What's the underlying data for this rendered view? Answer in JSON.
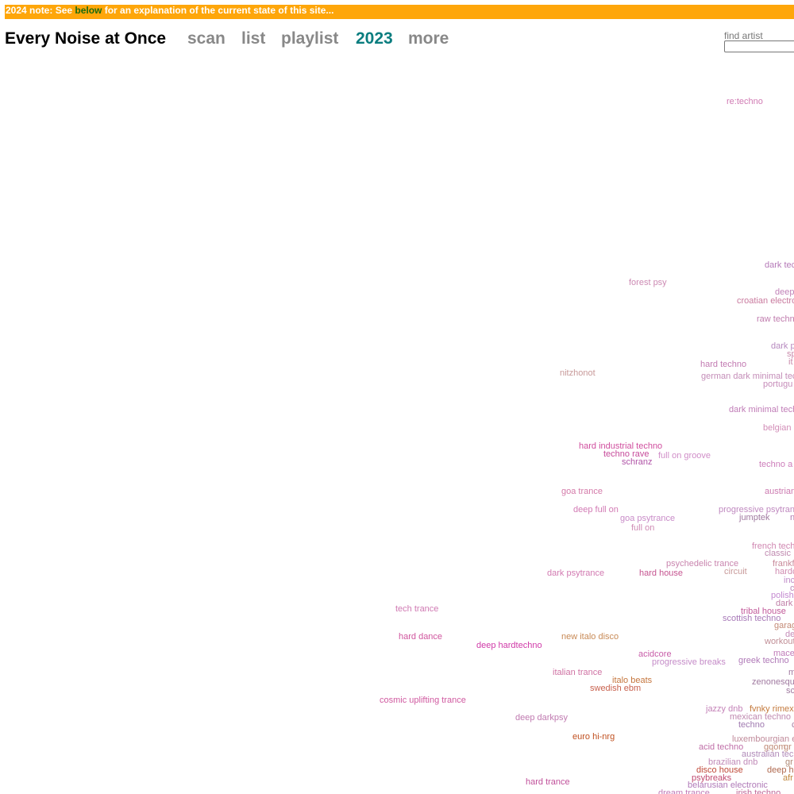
{
  "banner": {
    "prefix": "2024 note: See ",
    "link": "below",
    "suffix": " for an explanation of the current state of this site..."
  },
  "header": {
    "title": "Every Noise at Once",
    "nav": [
      "scan",
      "list",
      "playlist",
      "2023",
      "more"
    ],
    "active_nav": "2023",
    "find_label": "find artist",
    "find_value": ""
  },
  "genres": [
    "re:techno",
    "dark tec",
    "forest psy",
    "deep",
    "croatian electro",
    "raw techn",
    "dark p",
    "sp",
    "it",
    "hard techno",
    "nitzhonot",
    "german dark minimal tec",
    "portugu",
    "dark minimal tech",
    "belgian",
    "hard industrial techno",
    "techno rave",
    "full on groove",
    "schranz",
    "techno a",
    "goa trance",
    "austrian",
    "deep full on",
    "progressive psytran",
    "goa psytrance",
    "jumptek",
    "n",
    "full on",
    "french tech",
    "classic",
    "psychedelic trance",
    "frankf",
    "dark psytrance",
    "hard house",
    "circuit",
    "hardc",
    "inc",
    "c",
    "polish",
    "dark",
    "tech trance",
    "tribal house",
    "scottish techno",
    "garag",
    "hard dance",
    "new italo disco",
    "de",
    "workout",
    "deep hardtechno",
    "acidcore",
    "mace",
    "progressive breaks",
    "greek techno",
    "italian trance",
    "m",
    "italo beats",
    "zenonesqu",
    "swedish ebm",
    "sc",
    "cosmic uplifting trance",
    "jazzy dnb",
    "fvnky rimex",
    "deep darkpsy",
    "mexican techno",
    "techno",
    "c",
    "euro hi-nrg",
    "luxembourgian e",
    "acid techno",
    "gqom",
    "gr",
    "australian tec",
    "brazilian dnb",
    "gr",
    "disco house",
    "deep h",
    "psybreaks",
    "afr",
    "hard trance",
    "belarusian electronic",
    "dream trance",
    "irish techno"
  ],
  "colors": {
    "banner_bg": "#fea60a",
    "active_nav": "#0a7d7f",
    "nav": "#888888"
  }
}
